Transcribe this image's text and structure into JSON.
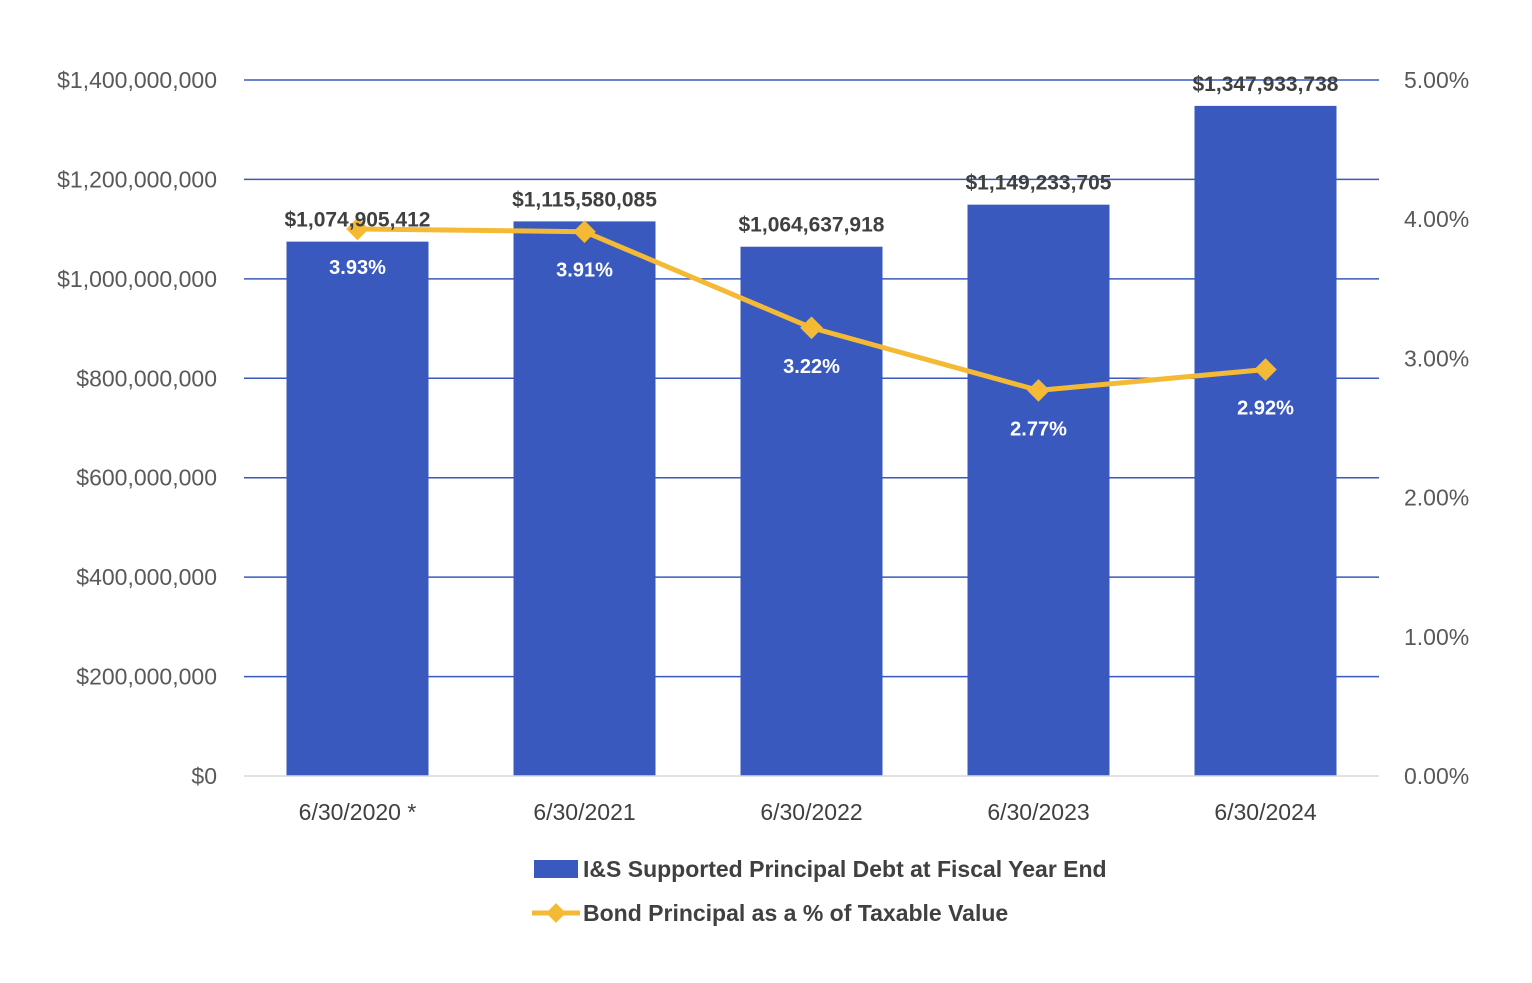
{
  "chart_data": {
    "type": "bar",
    "categories": [
      "6/30/2020 *",
      "6/30/2021",
      "6/30/2022",
      "6/30/2023",
      "6/30/2024"
    ],
    "series": [
      {
        "name": "I&S Supported Principal Debt at Fiscal Year End",
        "kind": "bar",
        "axis": "left",
        "color": "#3A59BE",
        "values": [
          1074905412,
          1115580085,
          1064637918,
          1149233705,
          1347933738
        ],
        "labels": [
          "$1,074,905,412",
          "$1,115,580,085",
          "$1,064,637,918",
          "$1,149,233,705",
          "$1,347,933,738"
        ]
      },
      {
        "name": "Bond Principal as a % of Taxable Value",
        "kind": "line",
        "axis": "right",
        "color": "#F5BA35",
        "marker": "diamond",
        "values": [
          3.93,
          3.91,
          3.22,
          2.77,
          2.92
        ],
        "labels": [
          "3.93%",
          "3.91%",
          "3.22%",
          "2.77%",
          "2.92%"
        ]
      }
    ],
    "y_left": {
      "ylim": [
        0,
        1400000000
      ],
      "ticks": [
        "$0",
        "$200,000,000",
        "$400,000,000",
        "$600,000,000",
        "$800,000,000",
        "$1,000,000,000",
        "$1,200,000,000",
        "$1,400,000,000"
      ]
    },
    "y_right": {
      "ylim": [
        0,
        5
      ],
      "ticks": [
        "0.00%",
        "1.00%",
        "2.00%",
        "3.00%",
        "4.00%",
        "5.00%"
      ]
    },
    "grid": true,
    "gridColor": "#3A59BE",
    "legend": "bottom-center"
  }
}
